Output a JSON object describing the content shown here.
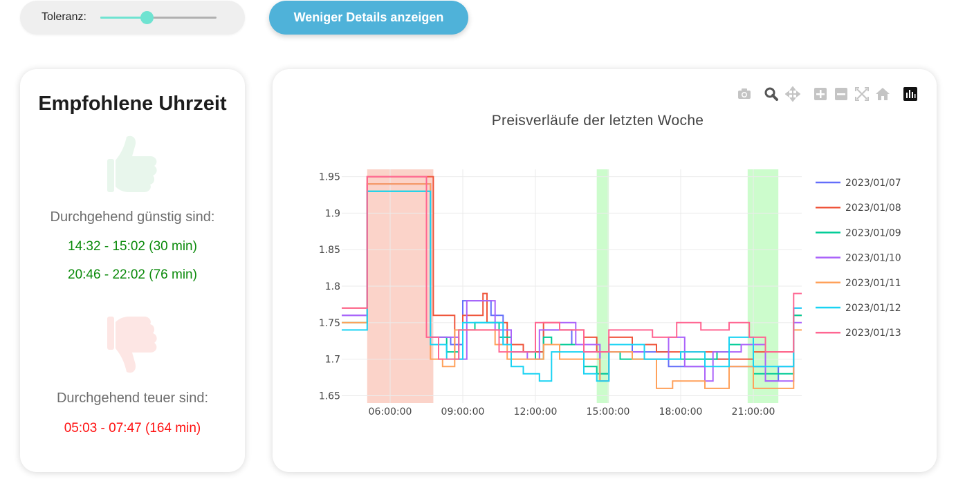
{
  "tolerance": {
    "label": "Toleranz:",
    "value_fraction": 0.4
  },
  "details_button": {
    "label": "Weniger Details anzeigen"
  },
  "recommendation": {
    "title": "Empfohlene Uhrzeit",
    "cheap_heading": "Durchgehend günstig sind:",
    "cheap_slots": [
      "14:32 - 15:02 (30 min)",
      "20:46 - 22:02 (76 min)"
    ],
    "expensive_heading": "Durchgehend teuer sind:",
    "expensive_slots": [
      "05:03 - 07:47 (164 min)"
    ]
  },
  "colors": {
    "cheap": "#0a8a0a",
    "expensive": "#ff1010",
    "accent": "#4fb2d9",
    "slider": "#6fe3d1"
  },
  "modebar": [
    "camera-icon",
    "zoom-icon",
    "pan-icon",
    "zoom-in-icon",
    "zoom-out-icon",
    "autoscale-icon",
    "reset-axes-icon",
    "plotly-logo-icon"
  ],
  "chart_data": {
    "type": "line",
    "line_shape": "step",
    "title": "Preisverläufe der letzten Woche",
    "xlabel": "",
    "ylabel": "",
    "x_ticks": [
      "06:00:00",
      "09:00:00",
      "12:00:00",
      "15:00:00",
      "18:00:00",
      "21:00:00"
    ],
    "y_ticks": [
      "1.65",
      "1.7",
      "1.75",
      "1.8",
      "1.85",
      "1.9",
      "1.95"
    ],
    "xlim": [
      "04:00",
      "23:00"
    ],
    "ylim": [
      1.64,
      1.96
    ],
    "grid": true,
    "legend_position": "right",
    "highlight_bands": [
      {
        "kind": "expensive",
        "from": "05:03",
        "to": "07:47",
        "color": "#fbd3c9"
      },
      {
        "kind": "cheap",
        "from": "14:32",
        "to": "15:02",
        "color": "#ccfccc"
      },
      {
        "kind": "cheap",
        "from": "20:46",
        "to": "22:02",
        "color": "#ccfccc"
      }
    ],
    "series": [
      {
        "name": "2023/01/07",
        "color": "#636efa",
        "points": [
          [
            "04:00",
            1.76
          ],
          [
            "05:03",
            1.94
          ],
          [
            "07:40",
            1.73
          ],
          [
            "08:30",
            1.72
          ],
          [
            "09:00",
            1.78
          ],
          [
            "10:10",
            1.76
          ],
          [
            "10:40",
            1.72
          ],
          [
            "11:30",
            1.71
          ],
          [
            "12:20",
            1.74
          ],
          [
            "13:30",
            1.72
          ],
          [
            "14:00",
            1.71
          ],
          [
            "14:40",
            1.68
          ],
          [
            "15:02",
            1.72
          ],
          [
            "16:00",
            1.71
          ],
          [
            "17:30",
            1.69
          ],
          [
            "19:00",
            1.7
          ],
          [
            "20:00",
            1.69
          ],
          [
            "21:30",
            1.67
          ],
          [
            "22:02",
            1.69
          ],
          [
            "22:40",
            1.77
          ],
          [
            "23:00",
            1.77
          ]
        ]
      },
      {
        "name": "2023/01/08",
        "color": "#ef553b",
        "points": [
          [
            "04:00",
            1.77
          ],
          [
            "05:03",
            1.95
          ],
          [
            "07:47",
            1.76
          ],
          [
            "08:40",
            1.7
          ],
          [
            "09:00",
            1.76
          ],
          [
            "09:50",
            1.79
          ],
          [
            "10:00",
            1.75
          ],
          [
            "10:50",
            1.72
          ],
          [
            "11:30",
            1.71
          ],
          [
            "12:20",
            1.75
          ],
          [
            "13:00",
            1.74
          ],
          [
            "14:00",
            1.73
          ],
          [
            "14:32",
            1.71
          ],
          [
            "15:02",
            1.73
          ],
          [
            "16:00",
            1.72
          ],
          [
            "17:00",
            1.71
          ],
          [
            "18:00",
            1.71
          ],
          [
            "19:30",
            1.7
          ],
          [
            "21:00",
            1.71
          ],
          [
            "22:02",
            1.71
          ],
          [
            "22:40",
            1.76
          ],
          [
            "23:00",
            1.76
          ]
        ]
      },
      {
        "name": "2023/01/09",
        "color": "#00cc96",
        "points": [
          [
            "04:00",
            1.75
          ],
          [
            "05:03",
            1.93
          ],
          [
            "07:40",
            1.73
          ],
          [
            "08:20",
            1.71
          ],
          [
            "08:50",
            1.74
          ],
          [
            "09:30",
            1.75
          ],
          [
            "10:30",
            1.73
          ],
          [
            "11:00",
            1.71
          ],
          [
            "12:00",
            1.7
          ],
          [
            "12:20",
            1.73
          ],
          [
            "12:40",
            1.72
          ],
          [
            "13:30",
            1.72
          ],
          [
            "14:00",
            1.69
          ],
          [
            "14:32",
            1.68
          ],
          [
            "15:02",
            1.71
          ],
          [
            "15:30",
            1.7
          ],
          [
            "17:00",
            1.7
          ],
          [
            "18:30",
            1.7
          ],
          [
            "19:30",
            1.71
          ],
          [
            "20:00",
            1.72
          ],
          [
            "21:00",
            1.68
          ],
          [
            "22:02",
            1.68
          ],
          [
            "22:40",
            1.76
          ],
          [
            "23:00",
            1.76
          ]
        ]
      },
      {
        "name": "2023/01/10",
        "color": "#ab63fa",
        "points": [
          [
            "04:00",
            1.76
          ],
          [
            "05:03",
            1.94
          ],
          [
            "07:40",
            1.73
          ],
          [
            "08:00",
            1.73
          ],
          [
            "08:50",
            1.7
          ],
          [
            "09:10",
            1.78
          ],
          [
            "10:00",
            1.78
          ],
          [
            "10:20",
            1.74
          ],
          [
            "11:00",
            1.71
          ],
          [
            "11:40",
            1.7
          ],
          [
            "12:10",
            1.74
          ],
          [
            "13:00",
            1.75
          ],
          [
            "13:40",
            1.72
          ],
          [
            "14:40",
            1.67
          ],
          [
            "15:02",
            1.71
          ],
          [
            "16:30",
            1.7
          ],
          [
            "17:30",
            1.73
          ],
          [
            "18:10",
            1.69
          ],
          [
            "19:00",
            1.67
          ],
          [
            "19:20",
            1.71
          ],
          [
            "20:30",
            1.72
          ],
          [
            "21:30",
            1.67
          ],
          [
            "22:02",
            1.67
          ],
          [
            "22:40",
            1.75
          ],
          [
            "23:00",
            1.75
          ]
        ]
      },
      {
        "name": "2023/01/11",
        "color": "#ffa15a",
        "points": [
          [
            "04:00",
            1.75
          ],
          [
            "05:03",
            1.94
          ],
          [
            "07:40",
            1.7
          ],
          [
            "08:10",
            1.69
          ],
          [
            "08:40",
            1.74
          ],
          [
            "09:40",
            1.74
          ],
          [
            "10:20",
            1.72
          ],
          [
            "10:50",
            1.7
          ],
          [
            "11:40",
            1.7
          ],
          [
            "12:20",
            1.72
          ],
          [
            "13:00",
            1.7
          ],
          [
            "14:00",
            1.7
          ],
          [
            "14:40",
            1.67
          ],
          [
            "15:02",
            1.71
          ],
          [
            "16:00",
            1.7
          ],
          [
            "17:00",
            1.66
          ],
          [
            "17:40",
            1.67
          ],
          [
            "18:40",
            1.67
          ],
          [
            "19:00",
            1.66
          ],
          [
            "20:00",
            1.69
          ],
          [
            "21:00",
            1.66
          ],
          [
            "22:02",
            1.66
          ],
          [
            "22:40",
            1.74
          ],
          [
            "23:00",
            1.74
          ]
        ]
      },
      {
        "name": "2023/01/12",
        "color": "#19d3f3",
        "points": [
          [
            "04:00",
            1.74
          ],
          [
            "05:03",
            1.93
          ],
          [
            "07:40",
            1.72
          ],
          [
            "08:20",
            1.7
          ],
          [
            "09:00",
            1.75
          ],
          [
            "10:00",
            1.75
          ],
          [
            "10:40",
            1.72
          ],
          [
            "11:00",
            1.69
          ],
          [
            "11:30",
            1.68
          ],
          [
            "12:10",
            1.67
          ],
          [
            "12:40",
            1.71
          ],
          [
            "14:00",
            1.68
          ],
          [
            "14:32",
            1.67
          ],
          [
            "15:02",
            1.72
          ],
          [
            "16:30",
            1.7
          ],
          [
            "18:00",
            1.71
          ],
          [
            "19:00",
            1.69
          ],
          [
            "20:00",
            1.73
          ],
          [
            "21:00",
            1.69
          ],
          [
            "22:02",
            1.69
          ],
          [
            "22:40",
            1.77
          ],
          [
            "23:00",
            1.77
          ]
        ]
      },
      {
        "name": "2023/01/13",
        "color": "#ff6692",
        "points": [
          [
            "04:00",
            1.77
          ],
          [
            "05:03",
            1.95
          ],
          [
            "07:30",
            1.73
          ],
          [
            "08:00",
            1.7
          ],
          [
            "08:50",
            1.74
          ],
          [
            "09:40",
            1.74
          ],
          [
            "10:30",
            1.71
          ],
          [
            "11:20",
            1.71
          ],
          [
            "12:00",
            1.75
          ],
          [
            "13:00",
            1.74
          ],
          [
            "14:00",
            1.71
          ],
          [
            "14:32",
            1.71
          ],
          [
            "15:02",
            1.74
          ],
          [
            "16:50",
            1.73
          ],
          [
            "17:50",
            1.75
          ],
          [
            "18:50",
            1.74
          ],
          [
            "20:00",
            1.75
          ],
          [
            "20:50",
            1.73
          ],
          [
            "21:30",
            1.71
          ],
          [
            "22:02",
            1.71
          ],
          [
            "22:40",
            1.79
          ],
          [
            "23:00",
            1.79
          ]
        ]
      }
    ]
  }
}
